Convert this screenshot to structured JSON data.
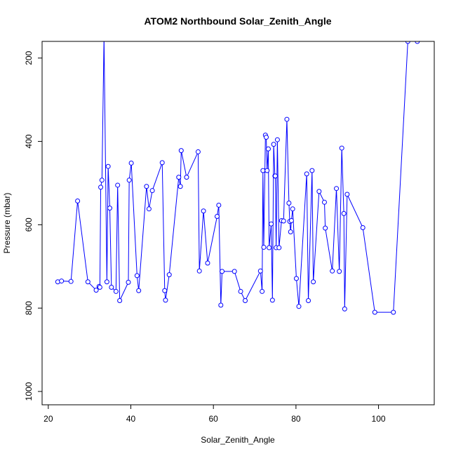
{
  "chart_data": {
    "type": "line",
    "title": "ATOM2 Northbound Solar_Zenith_Angle",
    "xlabel": "Solar_Zenith_Angle",
    "ylabel": "Pressure (mbar)",
    "xlim": [
      18.5,
      113.5
    ],
    "ylim": [
      1032,
      160
    ],
    "y_inverted": true,
    "xticks": [
      20,
      40,
      60,
      80,
      100
    ],
    "yticks": [
      200,
      400,
      600,
      800,
      1000
    ],
    "grid": false,
    "legend": "none",
    "series": [
      {
        "color": "#0000ff",
        "marker": "open-circle",
        "x": [
          22.3,
          23.2,
          25.5,
          27.1,
          29.6,
          31.6,
          32.3,
          32.5,
          32.7,
          33.0,
          33.5,
          34.2,
          34.5,
          34.9,
          35.3,
          36.4,
          36.8,
          37.3,
          39.4,
          39.6,
          40.1,
          41.5,
          41.9,
          43.8,
          44.4,
          45.2,
          47.6,
          48.2,
          48.4,
          49.3,
          51.6,
          52.0,
          52.2,
          53.5,
          56.3,
          56.6,
          57.6,
          58.6,
          60.9,
          61.3,
          61.8,
          62.1,
          65.1,
          66.6,
          67.7,
          71.4,
          71.8,
          72.0,
          72.2,
          72.6,
          72.8,
          73.0,
          73.3,
          73.5,
          74.0,
          74.3,
          74.6,
          74.9,
          75.0,
          75.2,
          75.5,
          75.9,
          76.5,
          77.0,
          77.8,
          78.3,
          78.5,
          78.7,
          78.9,
          79.2,
          80.1,
          80.7,
          82.6,
          83.0,
          83.9,
          84.2,
          85.6,
          86.9,
          87.1,
          88.8,
          89.8,
          90.5,
          91.1,
          91.6,
          91.8,
          92.4,
          96.2,
          99.1,
          103.6,
          107.1,
          109.4
        ],
        "y": [
          737,
          735,
          736,
          543,
          737,
          757,
          748,
          750,
          510,
          493,
          150,
          737,
          460,
          560,
          750,
          760,
          505,
          782,
          738,
          493,
          452,
          722,
          758,
          508,
          562,
          518,
          451,
          758,
          781,
          720,
          486,
          508,
          422,
          486,
          425,
          711,
          567,
          692,
          580,
          553,
          793,
          712,
          712,
          760,
          782,
          711,
          760,
          470,
          654,
          385,
          390,
          470,
          418,
          655,
          598,
          781,
          407,
          483,
          483,
          655,
          396,
          655,
          590,
          591,
          347,
          548,
          592,
          617,
          590,
          562,
          729,
          796,
          478,
          782,
          470,
          737,
          520,
          546,
          608,
          711,
          513,
          712,
          416,
          573,
          802,
          527,
          607,
          810,
          810,
          160,
          160
        ]
      }
    ]
  }
}
